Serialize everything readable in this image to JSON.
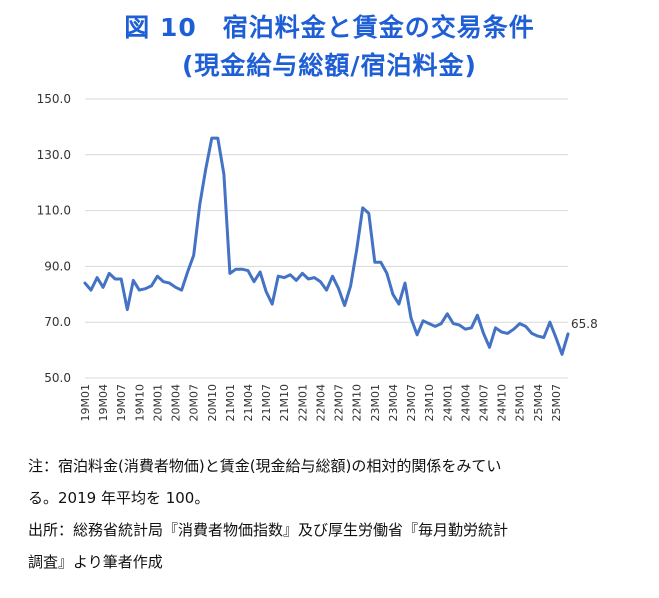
{
  "title_line1": "図 10　宿泊料金と賃金の交易条件",
  "title_line2": "(現金給与総額/宿泊料金)",
  "notes": [
    "注：宿泊料金(消費者物価)と賃金(現金給与総額)の相対的関係をみてい",
    "る。2019 年平均を 100。",
    "出所：総務省統計局『消費者物価指数』及び厚生労働省『毎月勤労統計",
    "調査』より筆者作成"
  ],
  "chart_data": {
    "type": "line",
    "title": "",
    "xlabel": "",
    "ylabel": "",
    "ylim": [
      50.0,
      150.0
    ],
    "y_ticks": [
      "50.0",
      "70.0",
      "90.0",
      "110.0",
      "130.0",
      "150.0"
    ],
    "x_tick_labels": [
      "19M01",
      "19M04",
      "19M07",
      "19M10",
      "20M01",
      "20M04",
      "20M07",
      "20M10",
      "21M01",
      "21M04",
      "21M07",
      "21M10",
      "22M01",
      "22M04",
      "22M07",
      "22M10",
      "23M01",
      "23M04",
      "23M07",
      "23M10",
      "24M01",
      "24M04",
      "24M07",
      "24M10",
      "25M01",
      "25M04",
      "25M07"
    ],
    "x_start": "2019-01",
    "grid": true,
    "line_color": "#4472c4",
    "end_label": "65.8",
    "series": [
      {
        "name": "",
        "values": [
          84.0,
          81.5,
          86.0,
          82.5,
          87.5,
          85.5,
          85.5,
          74.5,
          85.0,
          81.5,
          82.0,
          83.0,
          86.5,
          84.5,
          84.0,
          82.5,
          81.5,
          88.0,
          94.0,
          112.0,
          125.0,
          136.0,
          136.0,
          123.0,
          87.5,
          89.0,
          89.0,
          88.5,
          84.5,
          88.0,
          81.0,
          76.5,
          86.5,
          86.0,
          87.0,
          85.0,
          87.5,
          85.5,
          86.0,
          84.5,
          81.5,
          86.5,
          82.0,
          76.0,
          83.0,
          96.0,
          111.0,
          109.0,
          91.5,
          91.5,
          87.5,
          80.0,
          76.5,
          84.0,
          71.5,
          65.5,
          70.5,
          69.5,
          68.5,
          69.5,
          73.0,
          69.5,
          69.0,
          67.5,
          68.0,
          72.5,
          66.0,
          61.0,
          68.0,
          66.5,
          66.0,
          67.5,
          69.5,
          68.5,
          66.0,
          65.0,
          64.5,
          70.0,
          64.5,
          58.5,
          65.8
        ]
      }
    ]
  }
}
